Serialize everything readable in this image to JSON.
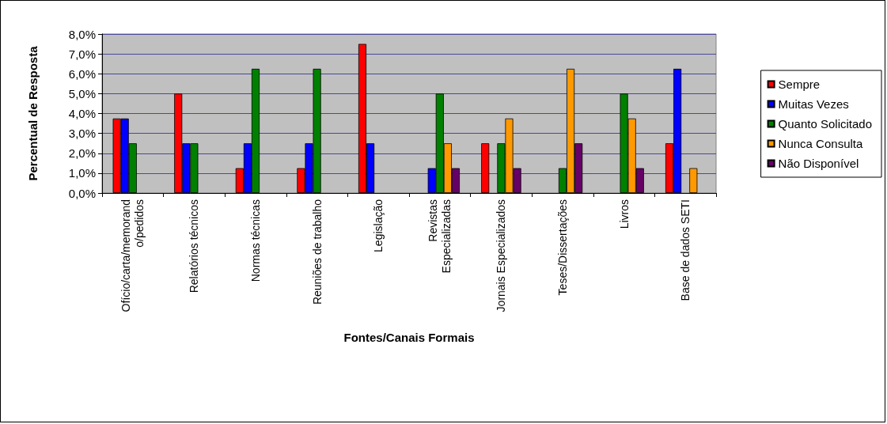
{
  "chart_data": {
    "type": "bar",
    "xlabel": "Fontes/Canais Formais",
    "ylabel": "Percentual de Resposta",
    "categories": [
      "Ofício/carta/memorand\no/pedidos",
      "Relatórios técnicos",
      "Normas técnicas",
      "Reuniões de trabalho",
      "Legislação",
      "Revistas\nEspecializadas",
      "Jornais Especializados",
      "Teses/Dissertações",
      "Livros",
      "Base de dados SETI"
    ],
    "series": [
      {
        "name": "Sempre",
        "color": "#ff0000",
        "values": [
          3.75,
          5.0,
          1.25,
          1.25,
          7.5,
          0,
          2.5,
          0,
          0,
          2.5
        ]
      },
      {
        "name": "Muitas Vezes",
        "color": "#0000ff",
        "values": [
          3.75,
          2.5,
          2.5,
          2.5,
          2.5,
          1.25,
          0,
          0,
          0,
          6.25
        ]
      },
      {
        "name": "Quanto Solicitado",
        "color": "#008000",
        "values": [
          2.5,
          2.5,
          6.25,
          6.25,
          0,
          5.0,
          2.5,
          1.25,
          5.0,
          0
        ]
      },
      {
        "name": "Nunca Consulta",
        "color": "#ff9900",
        "values": [
          0,
          0,
          0,
          0,
          0,
          2.5,
          3.75,
          6.25,
          3.75,
          1.25
        ]
      },
      {
        "name": "Não Disponível",
        "color": "#660066",
        "values": [
          0,
          0,
          0,
          0,
          0,
          1.25,
          1.25,
          2.5,
          1.25,
          0
        ]
      }
    ],
    "ylim": [
      0,
      8
    ],
    "yticks": [
      {
        "value": 0,
        "label": "0,0%"
      },
      {
        "value": 1,
        "label": "1,0%"
      },
      {
        "value": 2,
        "label": "2,0%"
      },
      {
        "value": 3,
        "label": "3,0%"
      },
      {
        "value": 4,
        "label": "4,0%"
      },
      {
        "value": 5,
        "label": "5,0%"
      },
      {
        "value": 6,
        "label": "6,0%"
      },
      {
        "value": 7,
        "label": "7,0%"
      },
      {
        "value": 8,
        "label": "8,0%"
      }
    ],
    "grid": "y",
    "legend": "right"
  }
}
